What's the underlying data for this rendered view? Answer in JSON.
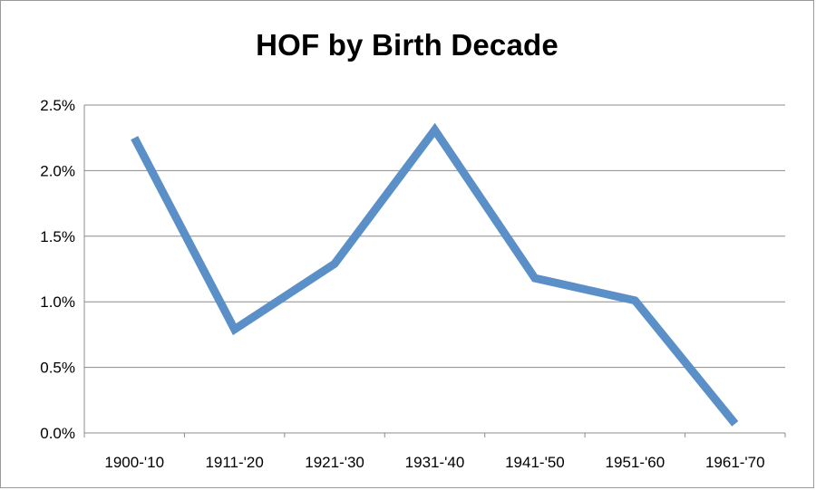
{
  "chart_data": {
    "type": "line",
    "title": "HOF by Birth Decade",
    "xlabel": "",
    "ylabel": "",
    "categories": [
      "1900-'10",
      "1911-'20",
      "1921-'30",
      "1931-'40",
      "1941-'50",
      "1951-'60",
      "1961-'70"
    ],
    "series": [
      {
        "values": [
          2.25,
          0.79,
          1.29,
          2.31,
          1.18,
          1.01,
          0.07
        ],
        "color": "#5b8fc7"
      }
    ],
    "ylim": [
      0,
      2.5
    ],
    "yticks": [
      0,
      0.5,
      1.0,
      1.5,
      2.0,
      2.5
    ],
    "ytick_labels": [
      "0.0%",
      "0.5%",
      "1.0%",
      "1.5%",
      "2.0%",
      "2.5%"
    ],
    "grid": true,
    "legend": "none"
  }
}
